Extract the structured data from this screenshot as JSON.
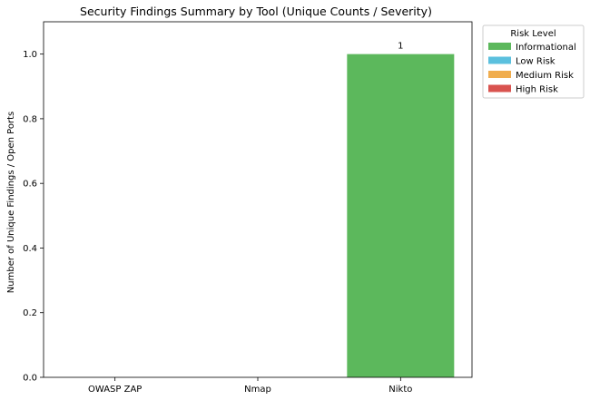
{
  "chart_data": {
    "type": "bar",
    "stacked": true,
    "title": "Security Findings Summary by Tool (Unique Counts / Severity)",
    "xlabel": "",
    "ylabel": "Number of Unique Findings / Open Ports",
    "categories": [
      "OWASP ZAP",
      "Nmap",
      "Nikto"
    ],
    "series": [
      {
        "name": "Informational",
        "color": "#5cb85c",
        "values": [
          0,
          0,
          1
        ]
      },
      {
        "name": "Low Risk",
        "color": "#5bc0de",
        "values": [
          0,
          0,
          0
        ]
      },
      {
        "name": "Medium Risk",
        "color": "#f0ad4e",
        "values": [
          0,
          0,
          0
        ]
      },
      {
        "name": "High Risk",
        "color": "#d9534f",
        "values": [
          0,
          0,
          0
        ]
      }
    ],
    "totals": [
      null,
      null,
      1
    ],
    "ylim": [
      0,
      1.1
    ],
    "yticks": [
      0.0,
      0.2,
      0.4,
      0.6,
      0.8,
      1.0
    ],
    "ytick_labels": [
      "0.0",
      "0.2",
      "0.4",
      "0.6",
      "0.8",
      "1.0"
    ],
    "grid": false,
    "legend": {
      "title": "Risk Level",
      "placement": "outside-top-right"
    }
  }
}
